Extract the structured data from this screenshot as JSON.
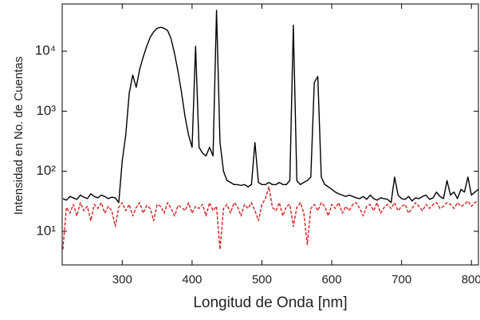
{
  "chart_data": {
    "type": "line",
    "xlabel": "Longitud de Onda [nm]",
    "ylabel": "Intensidad en No. de Cuentas",
    "x": [
      215,
      220,
      225,
      230,
      235,
      240,
      245,
      250,
      255,
      260,
      265,
      270,
      275,
      280,
      285,
      290,
      295,
      300,
      305,
      310,
      315,
      320,
      325,
      330,
      335,
      340,
      345,
      350,
      355,
      360,
      365,
      370,
      375,
      380,
      385,
      390,
      395,
      400,
      405,
      410,
      415,
      420,
      425,
      430,
      435,
      440,
      445,
      450,
      455,
      460,
      465,
      470,
      475,
      480,
      485,
      490,
      495,
      500,
      505,
      510,
      515,
      520,
      525,
      530,
      535,
      540,
      545,
      550,
      555,
      560,
      565,
      570,
      575,
      580,
      585,
      590,
      595,
      600,
      605,
      610,
      615,
      620,
      625,
      630,
      635,
      640,
      645,
      650,
      655,
      660,
      665,
      670,
      675,
      680,
      685,
      690,
      695,
      700,
      705,
      710,
      715,
      720,
      725,
      730,
      735,
      740,
      745,
      750,
      755,
      760,
      765,
      770,
      775,
      780,
      785,
      790,
      795,
      800,
      805,
      810
    ],
    "series": [
      {
        "color": "#000000",
        "dash": false,
        "values": [
          35,
          33,
          38,
          36,
          34,
          40,
          37,
          35,
          42,
          38,
          36,
          40,
          38,
          35,
          37,
          36,
          30,
          150,
          400,
          2000,
          4000,
          2500,
          5000,
          8000,
          12000,
          17000,
          21000,
          24000,
          25000,
          24000,
          22000,
          16000,
          9000,
          4500,
          2000,
          800,
          400,
          250,
          12000,
          250,
          200,
          180,
          250,
          180,
          48000,
          300,
          100,
          70,
          65,
          60,
          60,
          58,
          60,
          55,
          60,
          300,
          65,
          60,
          60,
          65,
          60,
          60,
          65,
          60,
          60,
          70,
          27000,
          70,
          60,
          65,
          70,
          80,
          3000,
          3800,
          80,
          60,
          55,
          50,
          45,
          42,
          40,
          38,
          40,
          38,
          36,
          35,
          38,
          34,
          40,
          35,
          33,
          36,
          35,
          34,
          30,
          80,
          40,
          35,
          34,
          38,
          32,
          36,
          35,
          38,
          40,
          34,
          36,
          45,
          38,
          35,
          70,
          40,
          45,
          35,
          50,
          45,
          80,
          40,
          45,
          50
        ]
      },
      {
        "color": "#d42020",
        "dash": true,
        "values": [
          5,
          25,
          20,
          28,
          18,
          30,
          22,
          26,
          15,
          28,
          24,
          30,
          20,
          26,
          22,
          12,
          25,
          30,
          22,
          28,
          18,
          25,
          30,
          20,
          27,
          24,
          15,
          28,
          26,
          20,
          30,
          24,
          18,
          27,
          25,
          22,
          30,
          20,
          26,
          24,
          28,
          18,
          30,
          22,
          26,
          5,
          24,
          28,
          20,
          30,
          26,
          18,
          28,
          24,
          30,
          22,
          15,
          28,
          35,
          55,
          25,
          22,
          30,
          18,
          26,
          28,
          12,
          25,
          30,
          20,
          6,
          24,
          28,
          22,
          30,
          26,
          18,
          28,
          24,
          30,
          20,
          26,
          22,
          28,
          30,
          24,
          18,
          26,
          28,
          22,
          30,
          20,
          25,
          28,
          24,
          30,
          22,
          26,
          28,
          20,
          24,
          30,
          26,
          22,
          28,
          24,
          28,
          30,
          24,
          26,
          30,
          28,
          24,
          30,
          26,
          28,
          32,
          26,
          30,
          32
        ]
      }
    ],
    "xlim": [
      214,
      810
    ],
    "ylim": [
      2.75,
      61000
    ],
    "log_y": true,
    "xticks": [
      300,
      400,
      500,
      600,
      700,
      800
    ],
    "yticks": [
      {
        "value": 10,
        "label": "10¹"
      },
      {
        "value": 100,
        "label": "10²"
      },
      {
        "value": 1000,
        "label": "10³"
      },
      {
        "value": 10000,
        "label": "10⁴"
      }
    ]
  }
}
